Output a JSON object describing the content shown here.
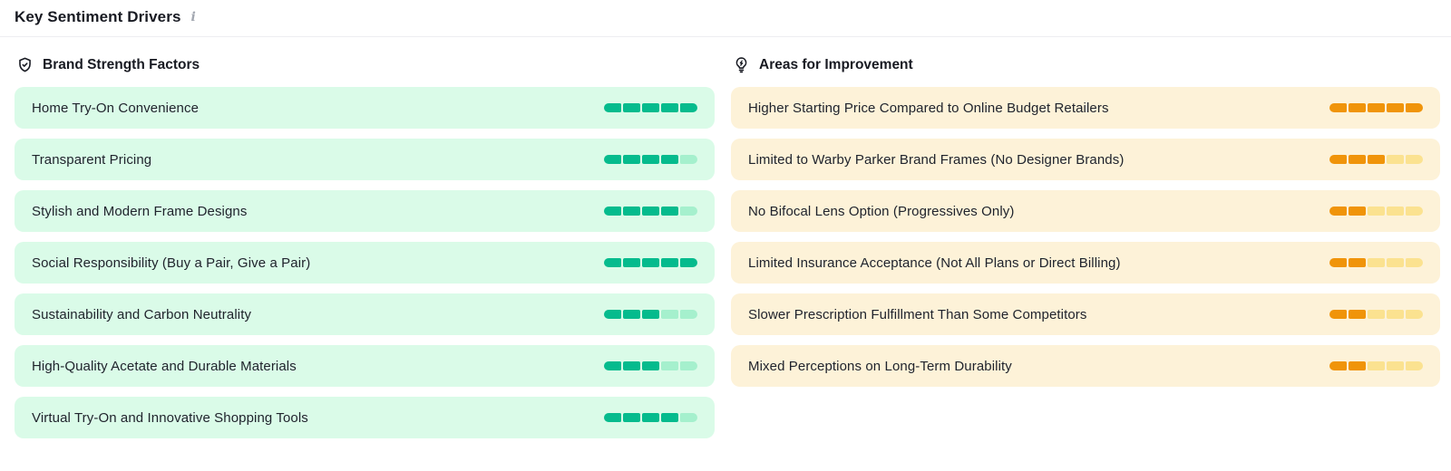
{
  "header": {
    "title": "Key Sentiment Drivers",
    "info_icon": "i"
  },
  "colors": {
    "strength_fill": "#05bb8d",
    "strength_empty": "#a5f0cd",
    "strength_bg": "#dafbe8",
    "improvement_fill": "#f0940a",
    "improvement_empty": "#fbe290",
    "improvement_bg": "#fdf2d8",
    "heading_text": "#181a22",
    "item_text": "#20242d"
  },
  "scale_max": 5,
  "strengths": {
    "title": "Brand Strength Factors",
    "icon": "shield-check-icon",
    "items": [
      {
        "label": "Home Try-On Convenience",
        "score": 5
      },
      {
        "label": "Transparent Pricing",
        "score": 4
      },
      {
        "label": "Stylish and Modern Frame Designs",
        "score": 4
      },
      {
        "label": "Social Responsibility (Buy a Pair, Give a Pair)",
        "score": 5
      },
      {
        "label": "Sustainability and Carbon Neutrality",
        "score": 3
      },
      {
        "label": "High-Quality Acetate and Durable Materials",
        "score": 3
      },
      {
        "label": "Virtual Try-On and Innovative Shopping Tools",
        "score": 4
      }
    ]
  },
  "improvements": {
    "title": "Areas for Improvement",
    "icon": "lightbulb-bolt-icon",
    "items": [
      {
        "label": "Higher Starting Price Compared to Online Budget Retailers",
        "score": 5
      },
      {
        "label": "Limited to Warby Parker Brand Frames (No Designer Brands)",
        "score": 3
      },
      {
        "label": "No Bifocal Lens Option (Progressives Only)",
        "score": 2
      },
      {
        "label": "Limited Insurance Acceptance (Not All Plans or Direct Billing)",
        "score": 2
      },
      {
        "label": "Slower Prescription Fulfillment Than Some Competitors",
        "score": 2
      },
      {
        "label": "Mixed Perceptions on Long-Term Durability",
        "score": 2
      }
    ]
  }
}
